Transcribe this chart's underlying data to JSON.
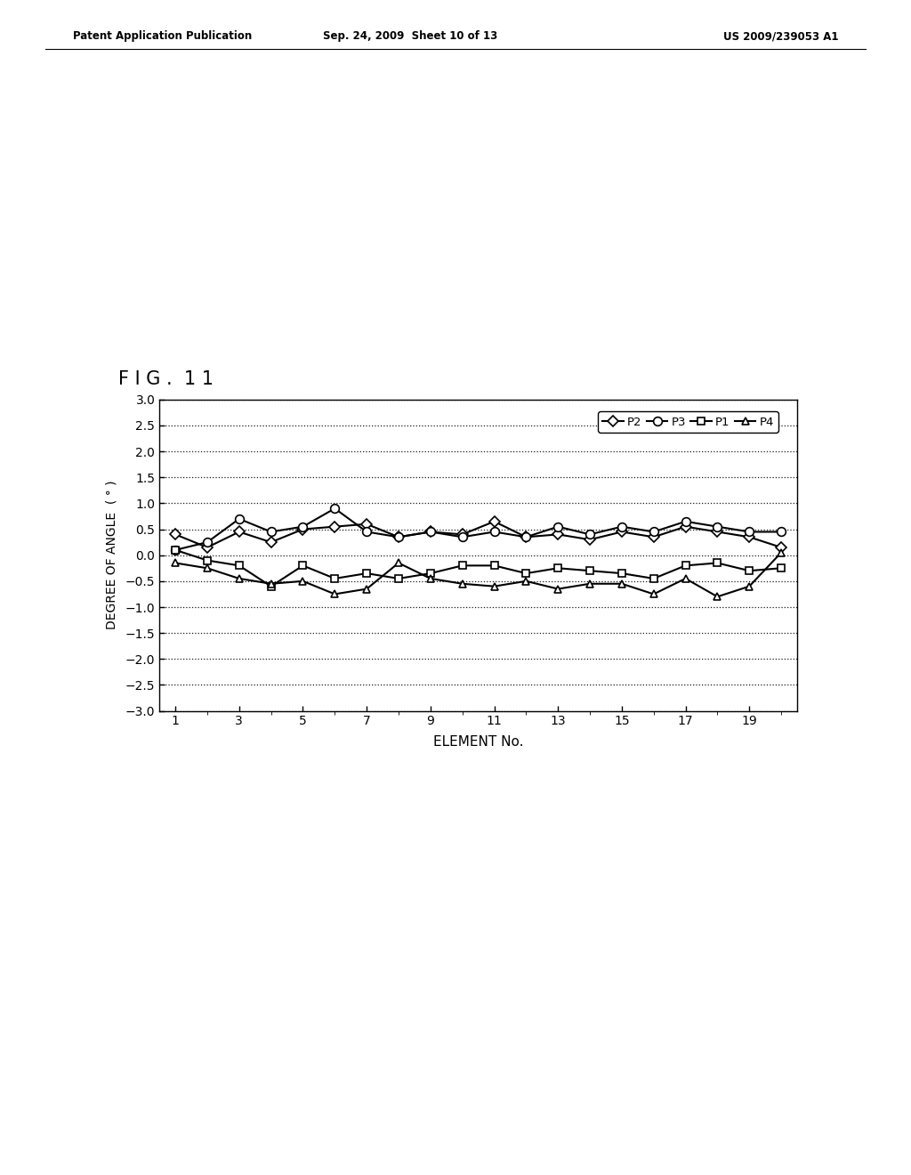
{
  "title": "F I G .  1 1",
  "xlabel": "ELEMENT No.",
  "ylabel": "DEGREE OF ANGLE  ( ° )",
  "xlim": [
    0.5,
    20.5
  ],
  "ylim": [
    -3.0,
    3.0
  ],
  "yticks": [
    -3.0,
    -2.5,
    -2.0,
    -1.5,
    -1.0,
    -0.5,
    0.0,
    0.5,
    1.0,
    1.5,
    2.0,
    2.5,
    3.0
  ],
  "xticks": [
    1,
    3,
    5,
    7,
    9,
    11,
    13,
    15,
    17,
    19
  ],
  "x_values": [
    1,
    2,
    3,
    4,
    5,
    6,
    7,
    8,
    9,
    10,
    11,
    12,
    13,
    14,
    15,
    16,
    17,
    18,
    19,
    20
  ],
  "P2": [
    0.4,
    0.15,
    0.45,
    0.25,
    0.5,
    0.55,
    0.6,
    0.35,
    0.45,
    0.4,
    0.65,
    0.35,
    0.4,
    0.3,
    0.45,
    0.35,
    0.55,
    0.45,
    0.35,
    0.15
  ],
  "P3": [
    0.1,
    0.25,
    0.7,
    0.45,
    0.55,
    0.9,
    0.45,
    0.35,
    0.45,
    0.35,
    0.45,
    0.35,
    0.55,
    0.4,
    0.55,
    0.45,
    0.65,
    0.55,
    0.45,
    0.45
  ],
  "P1": [
    0.1,
    -0.1,
    -0.2,
    -0.6,
    -0.2,
    -0.45,
    -0.35,
    -0.45,
    -0.35,
    -0.2,
    -0.2,
    -0.35,
    -0.25,
    -0.3,
    -0.35,
    -0.45,
    -0.2,
    -0.15,
    -0.3,
    -0.25
  ],
  "P4": [
    -0.15,
    -0.25,
    -0.45,
    -0.55,
    -0.5,
    -0.75,
    -0.65,
    -0.15,
    -0.45,
    -0.55,
    -0.6,
    -0.5,
    -0.65,
    -0.55,
    -0.55,
    -0.75,
    -0.45,
    -0.8,
    -0.6,
    0.05
  ],
  "header_left": "Patent Application Publication",
  "header_mid": "Sep. 24, 2009  Sheet 10 of 13",
  "header_right": "US 2009/239053 A1",
  "background_color": "#ffffff",
  "line_color": "#000000"
}
